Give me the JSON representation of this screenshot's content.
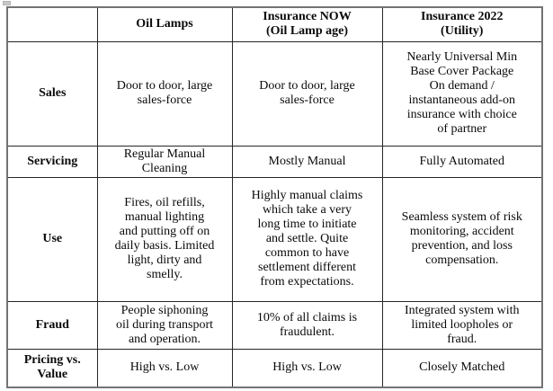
{
  "table": {
    "headers": [
      "Oil Lamps",
      "Insurance NOW\n(Oil Lamp age)",
      "Insurance 2022\n(Utility)"
    ],
    "rows": [
      {
        "label": "Sales",
        "cells": [
          "Door to door, large\nsales-force",
          "Door to door, large\nsales-force",
          "Nearly Universal Min\nBase Cover Package\nOn demand /\ninstantaneous add-on\ninsurance with choice\nof partner"
        ]
      },
      {
        "label": "Servicing",
        "cells": [
          "Regular Manual\nCleaning",
          "Mostly Manual",
          "Fully Automated"
        ]
      },
      {
        "label": "Use",
        "cells": [
          "Fires, oil refills,\nmanual lighting\nand putting off on\ndaily basis. Limited\nlight, dirty and\nsmelly.",
          "Highly manual claims\nwhich take a very\nlong time to initiate\nand settle. Quite\ncommon to have\nsettlement different\nfrom expectations.",
          "Seamless system of risk\nmonitoring, accident\nprevention, and loss\ncompensation."
        ]
      },
      {
        "label": "Fraud",
        "cells": [
          "People siphoning\noil during transport\nand operation.",
          "10% of all claims is\nfraudulent.",
          "Integrated system with\nlimited loopholes or\nfraud."
        ]
      },
      {
        "label": "Pricing vs.\nValue",
        "cells": [
          "High vs. Low",
          "High vs. Low",
          "Closely Matched"
        ]
      }
    ]
  }
}
